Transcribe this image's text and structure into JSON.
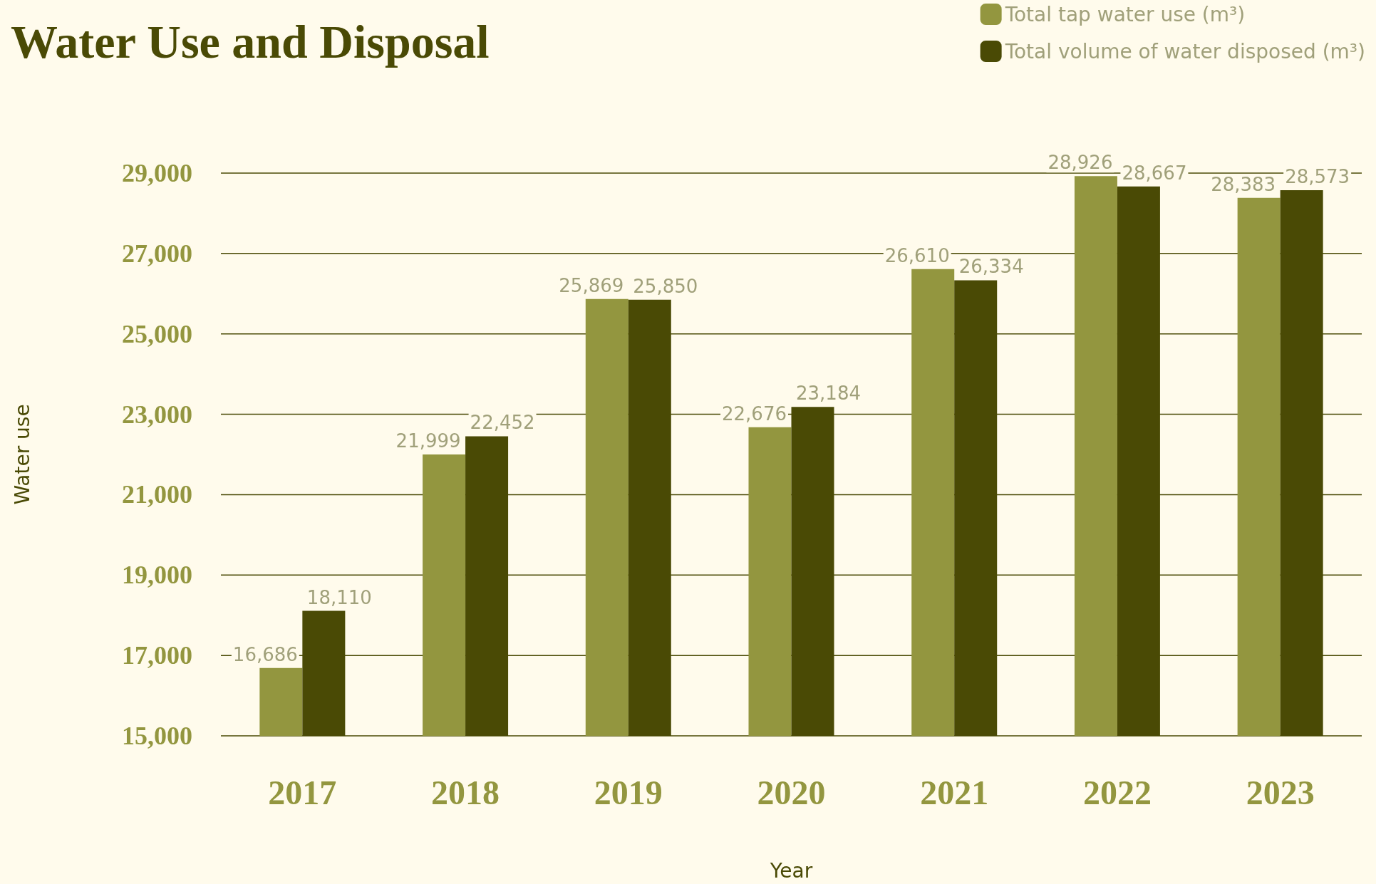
{
  "chart_data": {
    "type": "bar",
    "title": "Water Use and Disposal",
    "xlabel": "Year",
    "ylabel": "Water use",
    "categories": [
      "2017",
      "2018",
      "2019",
      "2020",
      "2021",
      "2022",
      "2023"
    ],
    "series": [
      {
        "name": "Total tap water use (m³)",
        "color": "#93963f",
        "values": [
          16686,
          21999,
          25869,
          22676,
          26610,
          28926,
          28383
        ],
        "value_labels": [
          "16,686",
          "21,999",
          "25,869",
          "22,676",
          "26,610",
          "28,926",
          "28,383"
        ]
      },
      {
        "name": "Total volume of water disposed (m³)",
        "color": "#4a4a05",
        "values": [
          18110,
          22452,
          25850,
          23184,
          26334,
          28667,
          28573
        ],
        "value_labels": [
          "18,110",
          "22,452",
          "25,850",
          "23,184",
          "26,334",
          "28,667",
          "28,573"
        ]
      }
    ],
    "ylim": [
      15000,
      29000
    ],
    "yticks": [
      {
        "value": 15000,
        "label": "15,000"
      },
      {
        "value": 17000,
        "label": "17,000"
      },
      {
        "value": 19000,
        "label": "19,000"
      },
      {
        "value": 21000,
        "label": "21,000"
      },
      {
        "value": 23000,
        "label": "23,000"
      },
      {
        "value": 25000,
        "label": "25,000"
      },
      {
        "value": 27000,
        "label": "27,000"
      },
      {
        "value": 29000,
        "label": "29,000"
      }
    ],
    "grid": "y",
    "legend": "top right"
  }
}
